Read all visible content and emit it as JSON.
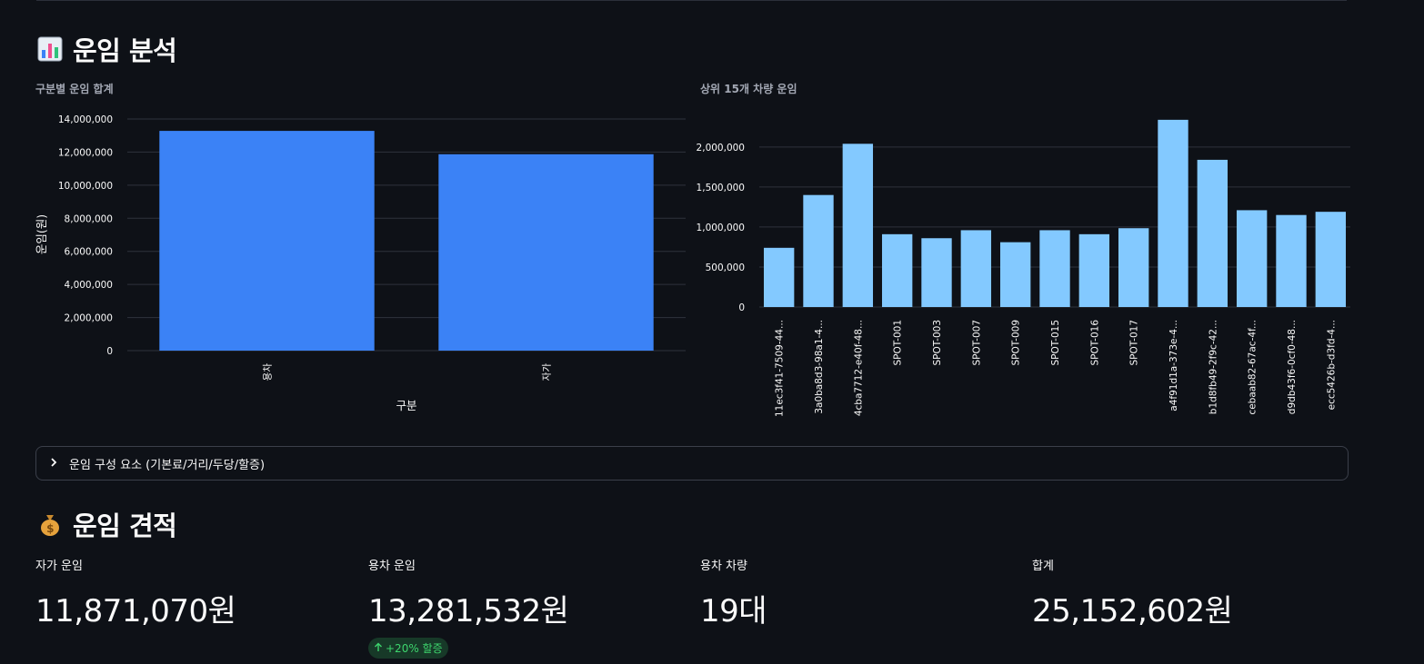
{
  "section1": {
    "title": "운임 분석",
    "icon": "bar-chart-icon"
  },
  "section2": {
    "title": "운임 견적",
    "icon": "money-bag-icon"
  },
  "chart_data": [
    {
      "type": "bar",
      "title": "구분별 운임 합계",
      "xlabel": "구분",
      "ylabel": "운임(원)",
      "categories": [
        "용차",
        "자가"
      ],
      "values": [
        13281532,
        11871070
      ],
      "ylim": [
        0,
        14000000
      ],
      "yticks": [
        0,
        2000000,
        4000000,
        6000000,
        8000000,
        10000000,
        12000000,
        14000000
      ],
      "ytick_labels": [
        "0",
        "2,000,000",
        "4,000,000",
        "6,000,000",
        "8,000,000",
        "10,000,000",
        "12,000,000",
        "14,000,000"
      ],
      "color": "#3b82f6",
      "grid": true
    },
    {
      "type": "bar",
      "title": "상위 15개 차량 운임",
      "xlabel": "",
      "ylabel": "",
      "categories": [
        "11ec3f41-7509-44...",
        "3a0ba8d3-98a1-4...",
        "4cba7712-e40f-48...",
        "SPOT-001",
        "SPOT-003",
        "SPOT-007",
        "SPOT-009",
        "SPOT-015",
        "SPOT-016",
        "SPOT-017",
        "a4f91d1a-373e-4...",
        "b1d8fb49-2f9c-42...",
        "cebaab82-67ac-4f...",
        "d9db43f6-0cf0-48...",
        "ecc5426b-d3fd-4..."
      ],
      "values": [
        740000,
        1400000,
        2040000,
        910000,
        860000,
        960000,
        810000,
        960000,
        910000,
        985000,
        2340000,
        1840000,
        1210000,
        1150000,
        1190000
      ],
      "ylim": [
        0,
        2350000
      ],
      "yticks": [
        0,
        500000,
        1000000,
        1500000,
        2000000
      ],
      "ytick_labels": [
        "0",
        "500,000",
        "1,000,000",
        "1,500,000",
        "2,000,000"
      ],
      "color": "#83c9ff",
      "grid": true
    }
  ],
  "expander": {
    "label": "운임 구성 요소 (기본료/거리/두당/할증)",
    "icon": "chevron-right-icon"
  },
  "metrics": [
    {
      "label": "자가 운임",
      "value": "11,871,070원"
    },
    {
      "label": "용차 운임",
      "value": "13,281,532원",
      "delta": "+20% 할증",
      "delta_icon": "arrow-up-icon"
    },
    {
      "label": "용차 차량",
      "value": "19대"
    },
    {
      "label": "합계",
      "value": "25,152,602원"
    }
  ]
}
